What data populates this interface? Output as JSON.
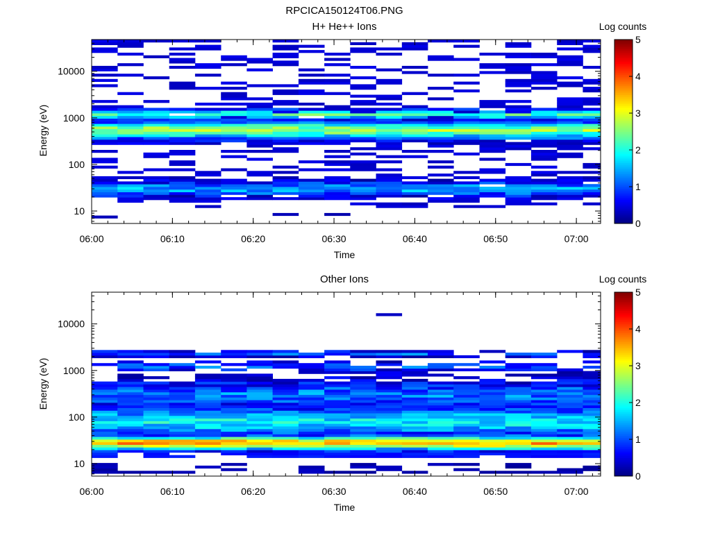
{
  "figure": {
    "title": "RPCICA150124T06.PNG"
  },
  "chart_data": [
    {
      "type": "heatmap",
      "title": "H+ He++ Ions",
      "xlabel": "Time",
      "ylabel": "Energy (eV)",
      "xlim": [
        "06:00",
        "07:03"
      ],
      "ylim_eV": [
        5.4,
        48000
      ],
      "yscale": "log",
      "xticks": [
        "06:00",
        "06:10",
        "06:20",
        "06:30",
        "06:40",
        "06:50",
        "07:00"
      ],
      "yticks": [
        "10",
        "100",
        "1000",
        "10000"
      ],
      "time_bin_minutes": 3.2,
      "colorbar": {
        "label": "Log counts",
        "min": 0,
        "max": 5,
        "ticks": [
          "0",
          "1",
          "2",
          "3",
          "4",
          "5"
        ]
      },
      "profile": {
        "bands": [
          {
            "energy_eV": 30,
            "width": 0.16,
            "log_counts": 1.4,
            "coverage": 0.95
          },
          {
            "energy_eV": 550,
            "width": 0.18,
            "log_counts": 2.6,
            "coverage": 1.0
          },
          {
            "energy_eV": 1200,
            "width": 0.1,
            "log_counts": 2.2,
            "coverage": 0.85
          }
        ],
        "sparse": [
          {
            "emin_eV": 40,
            "emax_eV": 45000,
            "log_counts": 0.3,
            "probability": 0.35
          },
          {
            "emin_eV": 12,
            "emax_eV": 20,
            "log_counts": 0.3,
            "probability": 0.25
          },
          {
            "emin_eV": 6,
            "emax_eV": 11,
            "log_counts": 0.1,
            "probability": 0.05
          }
        ]
      }
    },
    {
      "type": "heatmap",
      "title": "Other Ions",
      "xlabel": "Time",
      "ylabel": "Energy (eV)",
      "xlim": [
        "06:00",
        "07:03"
      ],
      "ylim_eV": [
        5.4,
        48000
      ],
      "yscale": "log",
      "xticks": [
        "06:00",
        "06:10",
        "06:20",
        "06:30",
        "06:40",
        "06:50",
        "07:00"
      ],
      "yticks": [
        "10",
        "100",
        "1000",
        "10000"
      ],
      "time_bin_minutes": 3.2,
      "colorbar": {
        "label": "Log counts",
        "min": 0,
        "max": 5,
        "ticks": [
          "0",
          "1",
          "2",
          "3",
          "4",
          "5"
        ]
      },
      "profile": {
        "bands": [
          {
            "energy_eV": 28,
            "width": 0.14,
            "log_counts": 3.5,
            "coverage": 1.0
          },
          {
            "energy_eV": 80,
            "width": 0.3,
            "log_counts": 1.8,
            "coverage": 1.0
          },
          {
            "energy_eV": 300,
            "width": 0.3,
            "log_counts": 1.2,
            "coverage": 1.0
          },
          {
            "energy_eV": 2300,
            "width": 0.06,
            "log_counts": 1.1,
            "coverage": 0.9
          },
          {
            "energy_eV": 1200,
            "width": 0.1,
            "log_counts": 1.0,
            "coverage": 0.7
          }
        ],
        "sparse": [
          {
            "emin_eV": 13,
            "emax_eV": 18,
            "log_counts": 0.6,
            "probability": 0.8
          },
          {
            "emin_eV": 6,
            "emax_eV": 11,
            "log_counts": 0.1,
            "probability": 0.35
          },
          {
            "emin_eV": 15000,
            "emax_eV": 17000,
            "log_counts": 0.3,
            "probability": 0.05
          }
        ]
      }
    }
  ]
}
